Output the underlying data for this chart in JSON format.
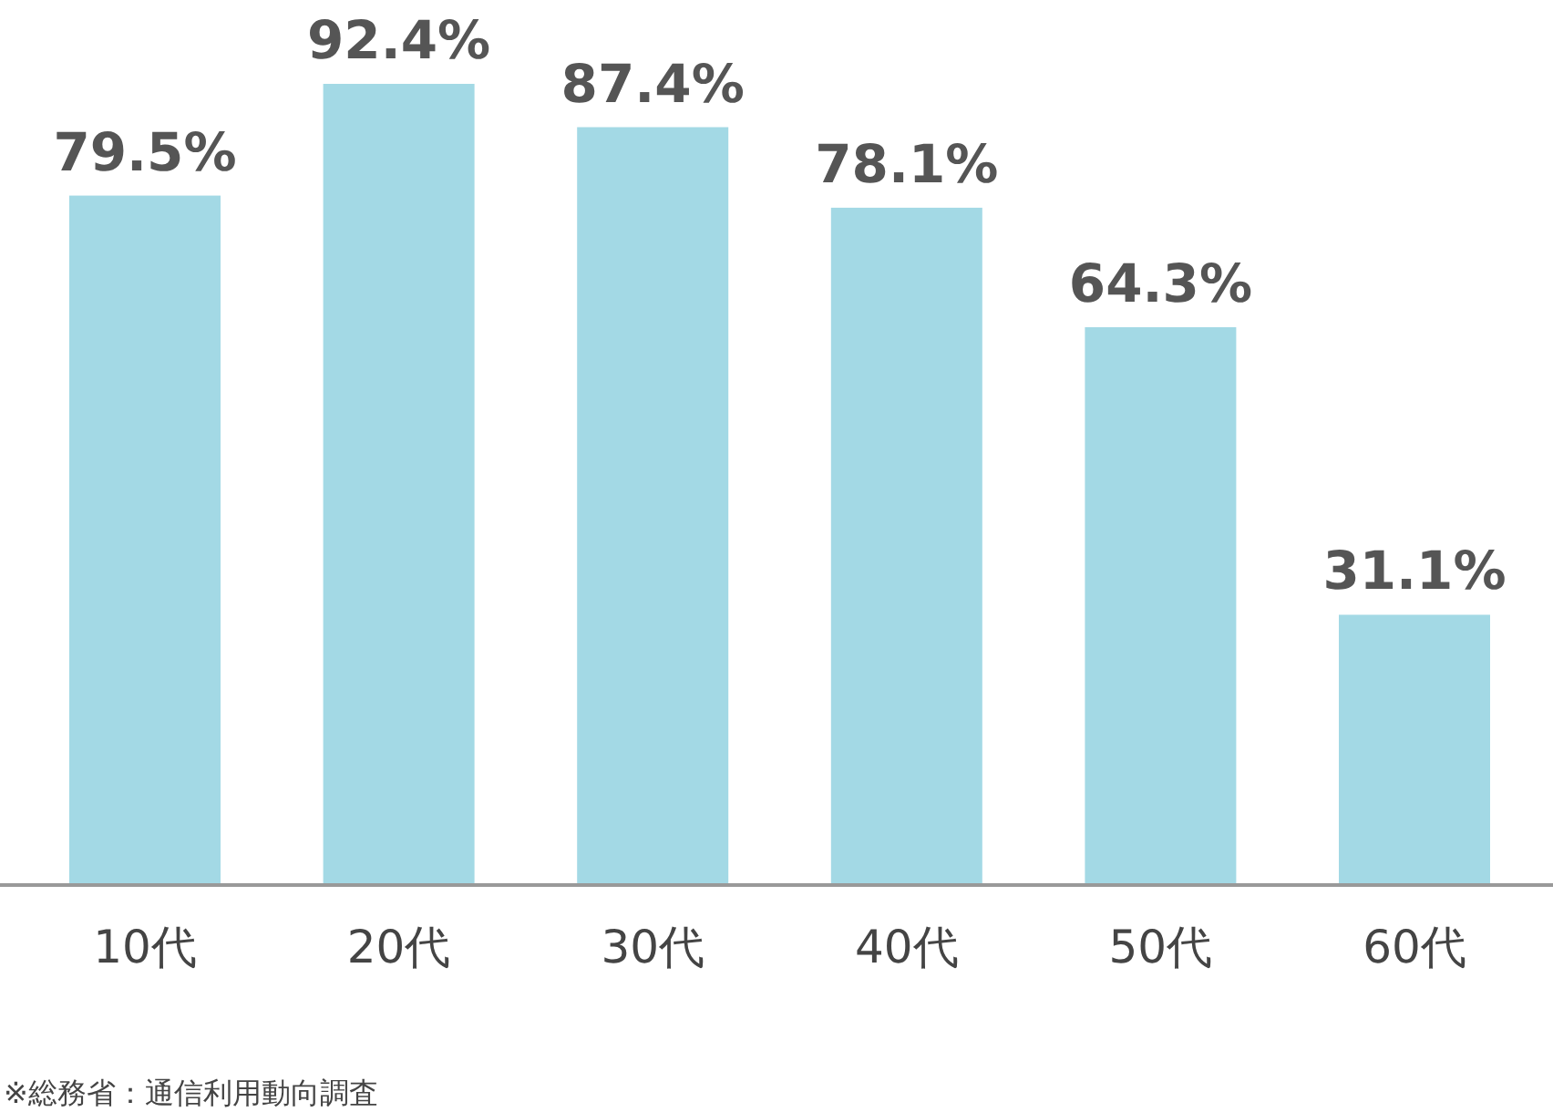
{
  "chart_data": {
    "type": "bar",
    "categories": [
      "10代",
      "20代",
      "30代",
      "40代",
      "50代",
      "60代"
    ],
    "values": [
      79.5,
      92.4,
      87.4,
      78.1,
      64.3,
      31.1
    ],
    "value_labels": [
      "79.5%",
      "92.4%",
      "87.4%",
      "78.1%",
      "64.3%",
      "31.1%"
    ],
    "color": "#a3d9e5",
    "annotations": [
      "※総務省：通信利用動向調査"
    ]
  }
}
